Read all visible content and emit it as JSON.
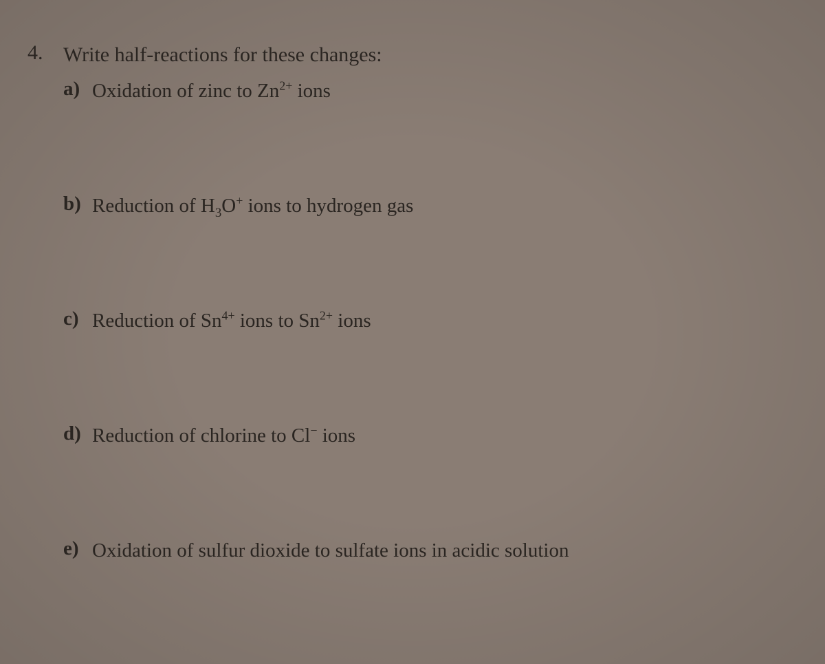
{
  "background_color": "#8a7d74",
  "text_color": "#2a2521",
  "font_family": "Georgia, Times New Roman, serif",
  "question": {
    "number": "4.",
    "prompt": "Write half-reactions for these changes:",
    "font_size_pt": 30,
    "parts": [
      {
        "label": "a)",
        "text_html": "Oxidation of zinc to Zn<sup>2+</sup> ions"
      },
      {
        "label": "b)",
        "text_html": "Reduction of H<sub>3</sub>O<sup>+</sup> ions to hydrogen gas"
      },
      {
        "label": "c)",
        "text_html": "Reduction of Sn<sup>4+</sup> ions to Sn<sup>2+</sup> ions"
      },
      {
        "label": "d)",
        "text_html": "Reduction of chlorine to Cl<sup>−</sup> ions"
      },
      {
        "label": "e)",
        "text_html": "Oxidation of sulfur dioxide to sulfate ions in acidic solution"
      }
    ]
  }
}
